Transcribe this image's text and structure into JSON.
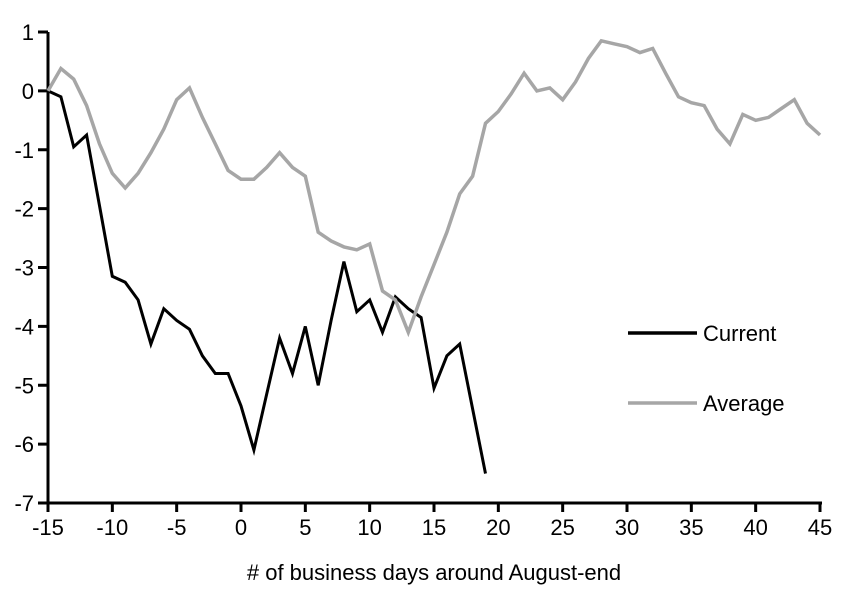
{
  "figure_title": "",
  "legend": {
    "current_label": "Current",
    "average_label": "Average"
  },
  "colors": {
    "current": "#000000",
    "average": "#a6a6a6",
    "axis": "#000000",
    "background": "#ffffff"
  },
  "chart_data": {
    "type": "line",
    "title": "",
    "xlabel": "# of business days around August-end",
    "ylabel": "",
    "xlim": [
      -15,
      45
    ],
    "ylim": [
      -7,
      1
    ],
    "grid": false,
    "legend_position": "right-middle",
    "xticks": [
      -15,
      -10,
      -5,
      0,
      5,
      10,
      15,
      20,
      25,
      30,
      35,
      40,
      45
    ],
    "yticks": [
      1,
      0,
      -1,
      -2,
      -3,
      -4,
      -5,
      -6,
      -7
    ],
    "x": [
      -15,
      -14,
      -13,
      -12,
      -11,
      -10,
      -9,
      -8,
      -7,
      -6,
      -5,
      -4,
      -3,
      -2,
      -1,
      0,
      1,
      2,
      3,
      4,
      5,
      6,
      7,
      8,
      9,
      10,
      11,
      12,
      13,
      14,
      15,
      16,
      17,
      18,
      19,
      20,
      21,
      22,
      23,
      24,
      25,
      26,
      27,
      28,
      29,
      30,
      31,
      32,
      33,
      34,
      35,
      36,
      37,
      38,
      39,
      40,
      41,
      42,
      43,
      44,
      45
    ],
    "series": [
      {
        "name": "Current",
        "color": "#000000",
        "stroke_width": 3,
        "values": [
          0,
          -0.1,
          -0.95,
          -0.75,
          -1.95,
          -3.15,
          -3.25,
          -3.55,
          -4.3,
          -3.7,
          -3.9,
          -4.05,
          -4.5,
          -4.8,
          -4.8,
          -5.35,
          -6.1,
          -5.15,
          -4.2,
          -4.8,
          -4.0,
          -5.0,
          -3.9,
          -2.9,
          -3.75,
          -3.55,
          -4.1,
          -3.5,
          -3.7,
          -3.85,
          -5.05,
          -4.5,
          -4.3,
          -5.4,
          -6.5,
          null,
          null,
          null,
          null,
          null,
          null,
          null,
          null,
          null,
          null,
          null,
          null,
          null,
          null,
          null,
          null,
          null,
          null,
          null,
          null,
          null,
          null,
          null,
          null,
          null,
          null
        ]
      },
      {
        "name": "Average",
        "color": "#a6a6a6",
        "stroke_width": 3.5,
        "values": [
          0.0,
          0.38,
          0.2,
          -0.25,
          -0.9,
          -1.4,
          -1.65,
          -1.4,
          -1.05,
          -0.65,
          -0.15,
          0.05,
          -0.45,
          -0.9,
          -1.35,
          -1.5,
          -1.5,
          -1.3,
          -1.05,
          -1.3,
          -1.45,
          -2.4,
          -2.55,
          -2.65,
          -2.7,
          -2.6,
          -3.4,
          -3.55,
          -4.1,
          -3.5,
          -2.95,
          -2.4,
          -1.75,
          -1.45,
          -0.55,
          -0.35,
          -0.05,
          0.3,
          0.0,
          0.05,
          -0.15,
          0.15,
          0.55,
          0.85,
          0.8,
          0.75,
          0.65,
          0.72,
          0.3,
          -0.1,
          -0.2,
          -0.25,
          -0.65,
          -0.9,
          -0.4,
          -0.5,
          -0.45,
          -0.3,
          -0.15,
          -0.55,
          -0.75
        ]
      }
    ]
  }
}
